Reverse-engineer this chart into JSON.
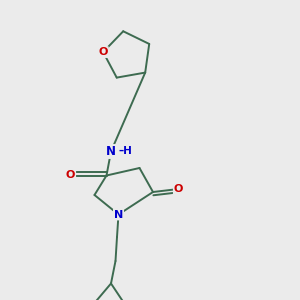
{
  "background_color": "#ebebeb",
  "bond_color": "#3d6b50",
  "atom_colors": {
    "O": "#cc0000",
    "N": "#0000cc",
    "C": "#3d6b50"
  },
  "figsize": [
    3.0,
    3.0
  ],
  "dpi": 100
}
